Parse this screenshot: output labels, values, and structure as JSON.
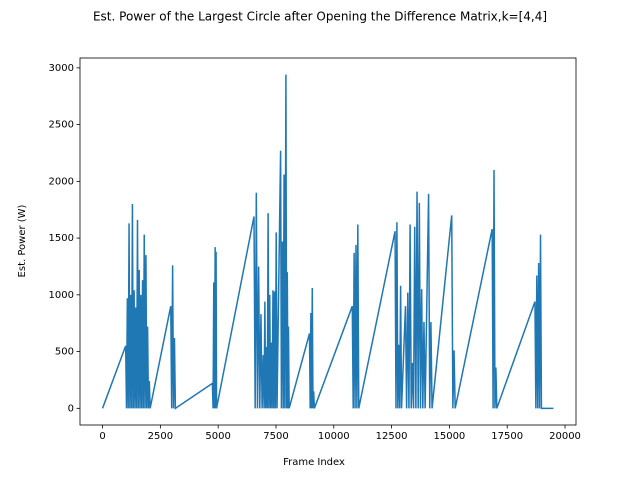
{
  "chart_data": {
    "type": "line",
    "title": "Est. Power of the Largest Circle after Opening the Difference Matrix,k=[4,4]",
    "x_label": "Frame Index",
    "y_label": "Est. Power (W)",
    "x": [
      0,
      1000,
      1036,
      1073,
      1109,
      1146,
      1182,
      1219,
      1255,
      1292,
      1328,
      1365,
      1401,
      1438,
      1474,
      1511,
      1547,
      1584,
      1620,
      1657,
      1693,
      1730,
      1766,
      1803,
      1839,
      1876,
      1912,
      1949,
      1985,
      2022,
      2058,
      2950,
      2990,
      3030,
      3070,
      3110,
      3150,
      4750,
      4780,
      4810,
      4840,
      4870,
      4890,
      4910,
      4930,
      6550,
      6600,
      6650,
      6700,
      6750,
      6800,
      6850,
      6900,
      6950,
      6985,
      7020,
      7055,
      7090,
      7125,
      7160,
      7195,
      7230,
      7265,
      7300,
      7335,
      7370,
      7405,
      7440,
      7475,
      7510,
      7545,
      7700,
      7735,
      7780,
      7815,
      7850,
      7885,
      7930,
      7960,
      7990,
      8020,
      8040,
      8070,
      8950,
      8980,
      9010,
      9040,
      9070,
      9100,
      9130,
      9160,
      10800,
      10840,
      10880,
      10920,
      10960,
      11000,
      11040,
      11080,
      12650,
      12690,
      12730,
      12770,
      12810,
      12850,
      12890,
      12930,
      13100,
      13150,
      13200,
      13250,
      13300,
      13350,
      13400,
      13450,
      13500,
      13550,
      13600,
      13650,
      13700,
      13750,
      13800,
      13850,
      13900,
      13950,
      14100,
      14150,
      14200,
      14250,
      15100,
      15150,
      15200,
      15250,
      16850,
      16890,
      16930,
      16970,
      17010,
      17050,
      18700,
      18740,
      18780,
      18820,
      18860,
      18900,
      18940,
      18980,
      19500
    ],
    "series": [
      {
        "name": "power",
        "color": "#1f77b4",
        "values": [
          0,
          550,
          0,
          970,
          0,
          1630,
          0,
          1000,
          0,
          1800,
          0,
          1040,
          0,
          890,
          0,
          1660,
          0,
          1220,
          0,
          1000,
          0,
          1130,
          0,
          1530,
          0,
          1350,
          0,
          720,
          0,
          240,
          0,
          900,
          0,
          1260,
          0,
          620,
          0,
          220,
          0,
          1110,
          0,
          1420,
          0,
          1380,
          0,
          1690,
          0,
          1900,
          0,
          1250,
          0,
          830,
          0,
          470,
          0,
          940,
          0,
          540,
          0,
          1720,
          0,
          1000,
          0,
          580,
          0,
          1040,
          0,
          1030,
          0,
          1550,
          0,
          2270,
          0,
          1470,
          0,
          2060,
          0,
          2940,
          0,
          1200,
          0,
          720,
          0,
          660,
          0,
          840,
          0,
          1060,
          0,
          150,
          0,
          900,
          0,
          1370,
          0,
          1440,
          0,
          1620,
          0,
          1560,
          0,
          1640,
          0,
          560,
          0,
          1080,
          0,
          900,
          0,
          1020,
          0,
          1620,
          0,
          400,
          0,
          1600,
          0,
          1910,
          0,
          1810,
          0,
          1050,
          0,
          760,
          0,
          1890,
          0,
          760,
          0,
          1700,
          0,
          510,
          0,
          1580,
          0,
          2100,
          0,
          360,
          0,
          940,
          0,
          1170,
          0,
          1280,
          0,
          1530,
          0,
          0
        ]
      }
    ],
    "xlim": [
      -975,
      20475
    ],
    "ylim": [
      -147,
      3087
    ],
    "xticks": [
      0,
      2500,
      5000,
      7500,
      10000,
      12500,
      15000,
      17500,
      20000
    ],
    "yticks": [
      0,
      500,
      1000,
      1500,
      2000,
      2500,
      3000
    ]
  }
}
